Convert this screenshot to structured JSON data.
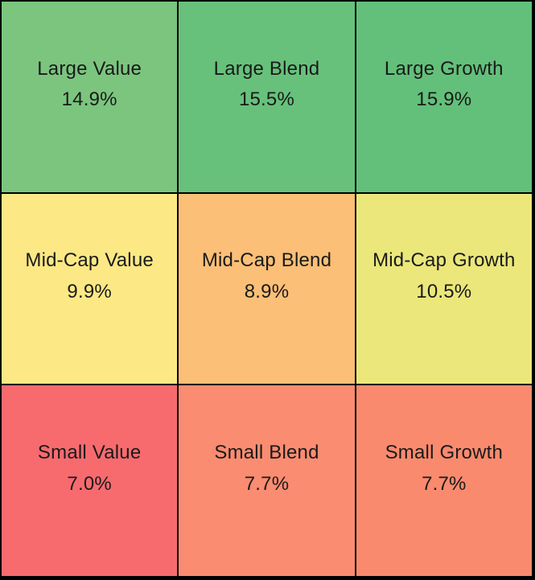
{
  "chart_data": {
    "type": "heatmap",
    "title": "",
    "rows": [
      "Large",
      "Mid-Cap",
      "Small"
    ],
    "columns": [
      "Value",
      "Blend",
      "Growth"
    ],
    "grid_line_color": "#000000",
    "text_color": "#1a1a1a",
    "cells": [
      {
        "row": "Large",
        "column": "Value",
        "label": "Large Value",
        "value": 14.9,
        "value_text": "14.9%",
        "color": "#7bc57e"
      },
      {
        "row": "Large",
        "column": "Blend",
        "label": "Large Blend",
        "value": 15.5,
        "value_text": "15.5%",
        "color": "#67c17b"
      },
      {
        "row": "Large",
        "column": "Growth",
        "label": "Large Growth",
        "value": 15.9,
        "value_text": "15.9%",
        "color": "#63c07a"
      },
      {
        "row": "Mid-Cap",
        "column": "Value",
        "label": "Mid-Cap Value",
        "value": 9.9,
        "value_text": "9.9%",
        "color": "#fce885"
      },
      {
        "row": "Mid-Cap",
        "column": "Blend",
        "label": "Mid-Cap Blend",
        "value": 8.9,
        "value_text": "8.9%",
        "color": "#fbbf77"
      },
      {
        "row": "Mid-Cap",
        "column": "Growth",
        "label": "Mid-Cap Growth",
        "value": 10.5,
        "value_text": "10.5%",
        "color": "#ebe77b"
      },
      {
        "row": "Small",
        "column": "Value",
        "label": "Small Value",
        "value": 7.0,
        "value_text": "7.0%",
        "color": "#f76b6f"
      },
      {
        "row": "Small",
        "column": "Blend",
        "label": "Small Blend",
        "value": 7.7,
        "value_text": "7.7%",
        "color": "#fa8c71"
      },
      {
        "row": "Small",
        "column": "Growth",
        "label": "Small Growth",
        "value": 7.7,
        "value_text": "7.7%",
        "color": "#fa8a6e"
      }
    ]
  }
}
